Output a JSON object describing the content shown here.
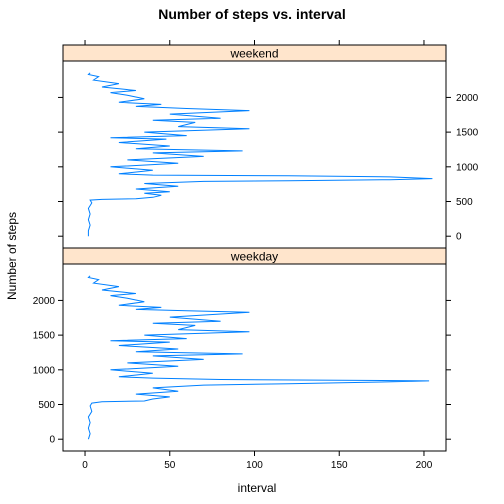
{
  "chart_data": {
    "type": "line",
    "title": "Number of steps vs. interval",
    "xlabel": "interval",
    "ylabel": "Number of steps",
    "xlim": [
      -13,
      213
    ],
    "ylim": [
      -170,
      2525
    ],
    "x_ticks": [
      0,
      50,
      100,
      150,
      200
    ],
    "y_ticks": [
      0,
      500,
      1000,
      1500,
      2000
    ],
    "grid": false,
    "layout": "two stacked panels, shared axes, alternating tick labels",
    "series_color": "#0080ff",
    "strip_color": "#ffe5cc",
    "panels": [
      {
        "name": "weekend",
        "points": [
          [
            2,
            0
          ],
          [
            2,
            80
          ],
          [
            3,
            160
          ],
          [
            2,
            240
          ],
          [
            3,
            320
          ],
          [
            2,
            400
          ],
          [
            4,
            480
          ],
          [
            3,
            520
          ],
          [
            10,
            530
          ],
          [
            30,
            540
          ],
          [
            40,
            560
          ],
          [
            45,
            590
          ],
          [
            35,
            620
          ],
          [
            50,
            640
          ],
          [
            30,
            680
          ],
          [
            55,
            720
          ],
          [
            35,
            760
          ],
          [
            70,
            790
          ],
          [
            120,
            800
          ],
          [
            180,
            815
          ],
          [
            205,
            830
          ],
          [
            180,
            855
          ],
          [
            120,
            870
          ],
          [
            40,
            880
          ],
          [
            20,
            900
          ],
          [
            40,
            950
          ],
          [
            15,
            1000
          ],
          [
            55,
            1050
          ],
          [
            25,
            1100
          ],
          [
            70,
            1150
          ],
          [
            40,
            1200
          ],
          [
            93,
            1230
          ],
          [
            30,
            1260
          ],
          [
            50,
            1300
          ],
          [
            20,
            1350
          ],
          [
            48,
            1400
          ],
          [
            15,
            1420
          ],
          [
            60,
            1450
          ],
          [
            35,
            1500
          ],
          [
            97,
            1550
          ],
          [
            55,
            1580
          ],
          [
            65,
            1640
          ],
          [
            40,
            1670
          ],
          [
            80,
            1700
          ],
          [
            50,
            1760
          ],
          [
            97,
            1810
          ],
          [
            60,
            1840
          ],
          [
            30,
            1870
          ],
          [
            45,
            1900
          ],
          [
            20,
            1930
          ],
          [
            35,
            1980
          ],
          [
            25,
            2030
          ],
          [
            15,
            2070
          ],
          [
            30,
            2100
          ],
          [
            10,
            2150
          ],
          [
            20,
            2200
          ],
          [
            5,
            2250
          ],
          [
            8,
            2300
          ],
          [
            2,
            2330
          ],
          [
            3,
            2355
          ]
        ]
      },
      {
        "name": "weekday",
        "points": [
          [
            2,
            0
          ],
          [
            3,
            80
          ],
          [
            2,
            160
          ],
          [
            3,
            240
          ],
          [
            2,
            320
          ],
          [
            4,
            400
          ],
          [
            3,
            480
          ],
          [
            4,
            520
          ],
          [
            10,
            540
          ],
          [
            35,
            550
          ],
          [
            40,
            580
          ],
          [
            50,
            610
          ],
          [
            30,
            650
          ],
          [
            55,
            690
          ],
          [
            40,
            740
          ],
          [
            70,
            780
          ],
          [
            120,
            800
          ],
          [
            175,
            825
          ],
          [
            203,
            840
          ],
          [
            150,
            850
          ],
          [
            80,
            860
          ],
          [
            40,
            880
          ],
          [
            20,
            900
          ],
          [
            40,
            950
          ],
          [
            15,
            1000
          ],
          [
            55,
            1050
          ],
          [
            25,
            1100
          ],
          [
            70,
            1150
          ],
          [
            40,
            1200
          ],
          [
            93,
            1230
          ],
          [
            30,
            1260
          ],
          [
            55,
            1300
          ],
          [
            20,
            1350
          ],
          [
            50,
            1400
          ],
          [
            15,
            1420
          ],
          [
            60,
            1450
          ],
          [
            35,
            1500
          ],
          [
            97,
            1550
          ],
          [
            55,
            1580
          ],
          [
            65,
            1640
          ],
          [
            40,
            1670
          ],
          [
            80,
            1700
          ],
          [
            50,
            1760
          ],
          [
            97,
            1830
          ],
          [
            60,
            1850
          ],
          [
            30,
            1870
          ],
          [
            45,
            1900
          ],
          [
            20,
            1930
          ],
          [
            35,
            1980
          ],
          [
            25,
            2030
          ],
          [
            15,
            2070
          ],
          [
            30,
            2100
          ],
          [
            10,
            2150
          ],
          [
            20,
            2200
          ],
          [
            5,
            2250
          ],
          [
            8,
            2300
          ],
          [
            2,
            2330
          ],
          [
            3,
            2355
          ]
        ]
      }
    ]
  }
}
